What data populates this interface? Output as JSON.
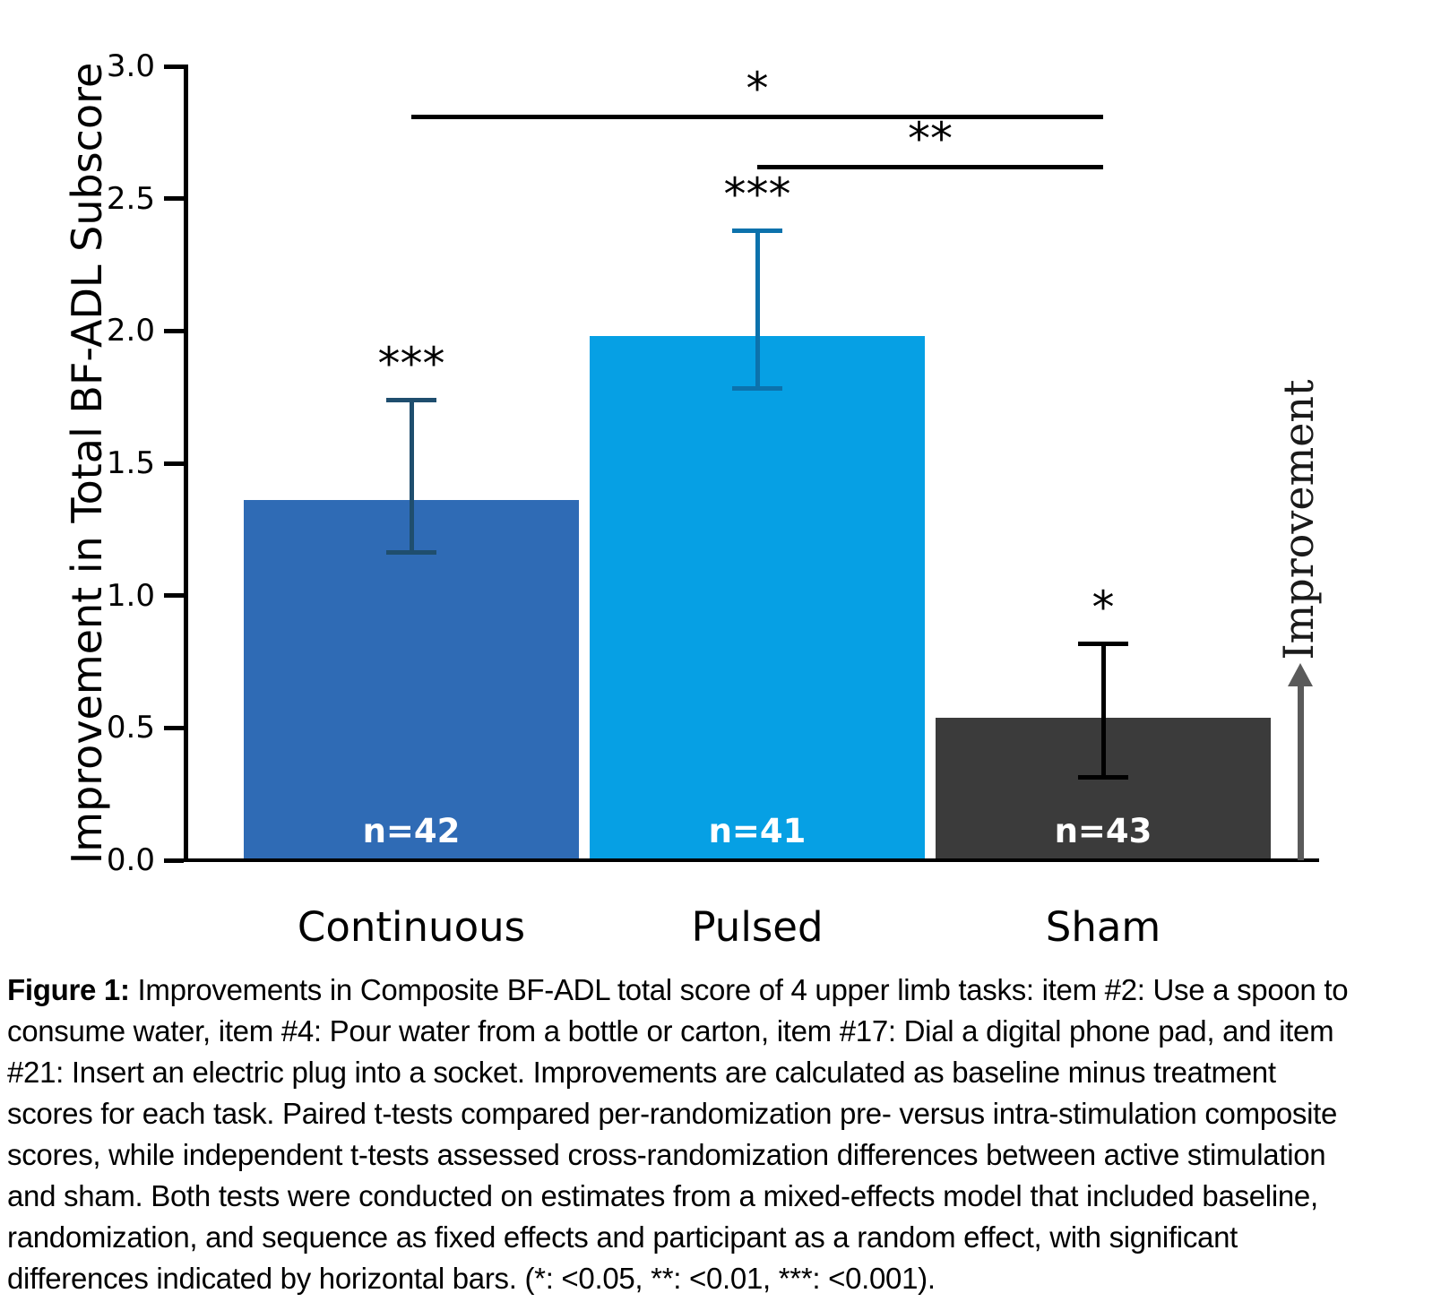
{
  "chart_data": {
    "type": "bar",
    "title": "",
    "categories": [
      "Continuous",
      "Pulsed",
      "Sham"
    ],
    "values": [
      1.36,
      1.98,
      0.54
    ],
    "error_bars": {
      "low": [
        1.16,
        1.78,
        0.31
      ],
      "high": [
        1.74,
        2.38,
        0.82
      ]
    },
    "bar_labels": [
      "n=42",
      "n=41",
      "n=43"
    ],
    "sig_markers": [
      "***",
      "***",
      "*"
    ],
    "comparisons": [
      {
        "label": "*",
        "from": 0,
        "to": 2,
        "y": 2.81,
        "from_category": "Continuous",
        "to_category": "Sham"
      },
      {
        "label": "**",
        "from": 1,
        "to": 2,
        "y": 2.62,
        "from_category": "Pulsed",
        "to_category": "Sham"
      }
    ],
    "ylabel": "Improvement in Total BF-ADL Subscore",
    "xlabel": "",
    "ylim": [
      0,
      3
    ],
    "yticks": [
      {
        "value": 0.0,
        "label": "0.0"
      },
      {
        "value": 0.5,
        "label": "0.5"
      },
      {
        "value": 1.0,
        "label": "1.0"
      },
      {
        "value": 1.5,
        "label": "1.5"
      },
      {
        "value": 2.0,
        "label": "2.0"
      },
      {
        "value": 2.5,
        "label": "2.5"
      },
      {
        "value": 3.0,
        "label": "3.0"
      }
    ],
    "grid": false,
    "legend": "none",
    "right_annotation": {
      "label": "Improvement",
      "arrow_from": 0.0,
      "arrow_to": 0.71
    },
    "colors": {
      "bars": [
        "#2F6BB5",
        "#06A0E4",
        "#3B3B3B"
      ],
      "error_bars": [
        "#1F4E6E",
        "#0C72AC",
        "#000000"
      ],
      "bar_label_text": "#FFFFFF",
      "axis": "#000000",
      "significance": "#000000",
      "arrow": "#5A5A5A"
    }
  },
  "caption": {
    "bold": "Figure 1:",
    "lines": [
      " Improvements in Composite BF-ADL total score of 4 upper limb tasks: item #2: Use a spoon to",
      "consume water, item #4: Pour water from a bottle or carton, item #17: Dial a digital phone pad, and item",
      "#21: Insert an electric plug into a socket. Improvements are calculated as baseline minus treatment",
      "scores for each task. Paired t-tests compared per-randomization pre- versus intra-stimulation composite",
      "scores, while independent t-tests assessed cross-randomization differences between active stimulation",
      "and sham. Both tests were conducted on estimates from a mixed-effects model that included baseline,",
      "randomization, and sequence as fixed effects and participant as a random effect, with significant",
      "differences indicated by horizontal bars. (*: <0.05, **: <0.01, ***: <0.001)."
    ]
  }
}
